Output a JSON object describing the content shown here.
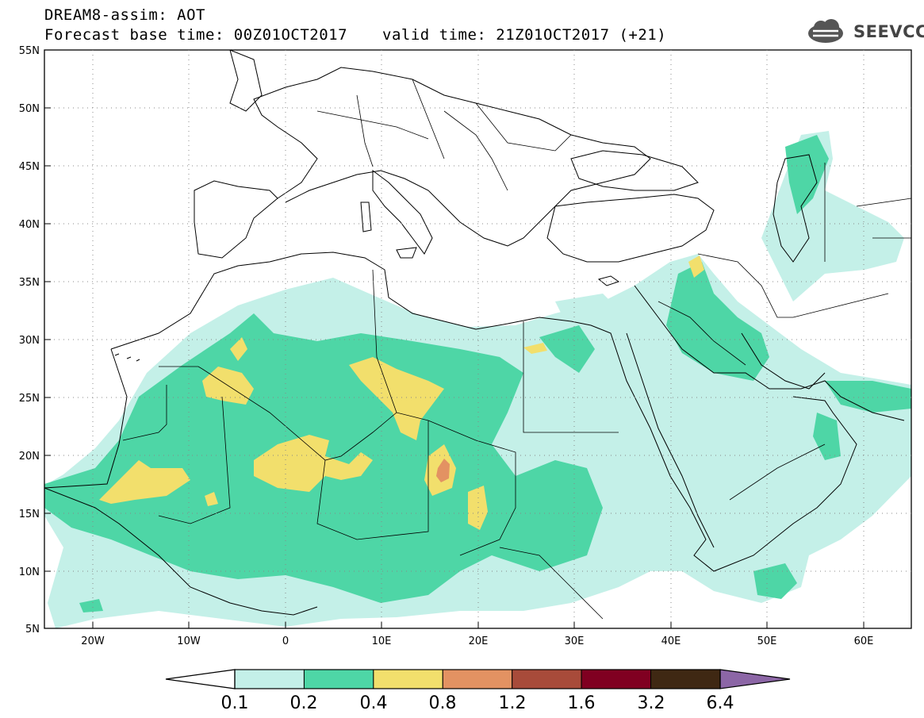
{
  "header": {
    "title": "DREAM8-assim: AOT",
    "base_time": "Forecast base time: 00Z01OCT2017",
    "valid_time": "valid time: 21Z01OCT2017 (+21)",
    "logo_text": "SEEVCCC"
  },
  "map": {
    "lat_labels": [
      "55N",
      "50N",
      "45N",
      "40N",
      "35N",
      "30N",
      "25N",
      "20N",
      "15N",
      "10N",
      "5N"
    ],
    "lon_labels": [
      "20W",
      "10W",
      "0",
      "10E",
      "20E",
      "30E",
      "40E",
      "50E",
      "60E"
    ],
    "lon_range": [
      -25,
      65
    ],
    "lat_range": [
      5,
      55
    ],
    "colors": {
      "level1": "#c4f0e8",
      "level2": "#4ed6a6",
      "level3": "#f2df6c",
      "level4": "#e39262",
      "background": "#ffffff",
      "coast": "#000000"
    }
  },
  "colorbar": {
    "labels": [
      "0.1",
      "0.2",
      "0.4",
      "0.8",
      "1.2",
      "1.6",
      "3.2",
      "6.4"
    ],
    "colors": [
      "#c4f0e8",
      "#4ed6a6",
      "#f2df6c",
      "#e39262",
      "#a84b3a",
      "#800021",
      "#3f2813",
      "#8c66a6"
    ],
    "under_color": "#ffffff",
    "over_color": "#8c66a6"
  }
}
